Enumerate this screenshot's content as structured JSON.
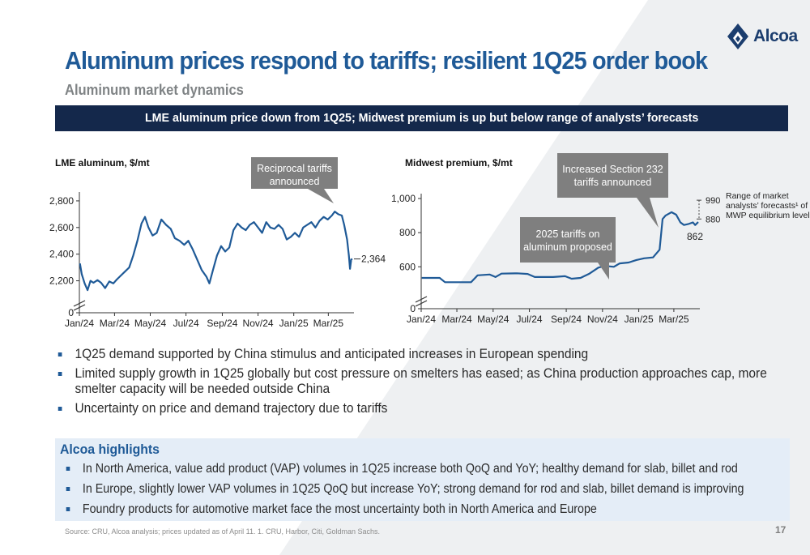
{
  "brand": {
    "name": "Alcoa",
    "color": "#1b3d6e"
  },
  "title": "Aluminum prices respond to tariffs; resilient 1Q25 order book",
  "subtitle": "Aluminum market dynamics",
  "banner": "LME aluminum price down from 1Q25; Midwest premium is up but below range of analysts’ forecasts",
  "colors": {
    "title": "#1f5a97",
    "banner": "#14284b",
    "series": "#1f5a97",
    "callout": "#7f7f7f",
    "highlight_bg": "#e4edf7"
  },
  "chart_data": [
    {
      "type": "line",
      "title": "LME aluminum, $/mt",
      "xlabel": "",
      "ylabel": "",
      "x_range": [
        "2024-01-01",
        "2025-04-11"
      ],
      "x_ticks": [
        "Jan/24",
        "Mar/24",
        "May/24",
        "Jul/24",
        "Sep/24",
        "Nov/24",
        "Jan/25",
        "Mar/25"
      ],
      "y_ticks": [
        "0",
        "2,200",
        "2,400",
        "2,600",
        "2,800"
      ],
      "ylim": [
        2100,
        2830
      ],
      "axis_break": true,
      "series": [
        {
          "values": [
            [
              "2024-01-02",
              2330
            ],
            [
              "2024-01-05",
              2250
            ],
            [
              "2024-01-10",
              2180
            ],
            [
              "2024-01-15",
              2130
            ],
            [
              "2024-01-20",
              2200
            ],
            [
              "2024-01-25",
              2185
            ],
            [
              "2024-02-01",
              2205
            ],
            [
              "2024-02-07",
              2185
            ],
            [
              "2024-02-14",
              2145
            ],
            [
              "2024-02-21",
              2195
            ],
            [
              "2024-02-28",
              2180
            ],
            [
              "2024-03-05",
              2210
            ],
            [
              "2024-03-12",
              2240
            ],
            [
              "2024-03-19",
              2270
            ],
            [
              "2024-03-26",
              2300
            ],
            [
              "2024-04-02",
              2390
            ],
            [
              "2024-04-09",
              2500
            ],
            [
              "2024-04-16",
              2630
            ],
            [
              "2024-04-22",
              2680
            ],
            [
              "2024-04-28",
              2600
            ],
            [
              "2024-05-05",
              2540
            ],
            [
              "2024-05-12",
              2560
            ],
            [
              "2024-05-20",
              2660
            ],
            [
              "2024-05-28",
              2620
            ],
            [
              "2024-06-05",
              2590
            ],
            [
              "2024-06-12",
              2520
            ],
            [
              "2024-06-20",
              2500
            ],
            [
              "2024-06-28",
              2470
            ],
            [
              "2024-07-05",
              2500
            ],
            [
              "2024-07-12",
              2440
            ],
            [
              "2024-07-20",
              2360
            ],
            [
              "2024-07-28",
              2280
            ],
            [
              "2024-08-05",
              2230
            ],
            [
              "2024-08-10",
              2180
            ],
            [
              "2024-08-16",
              2280
            ],
            [
              "2024-08-23",
              2390
            ],
            [
              "2024-08-30",
              2460
            ],
            [
              "2024-09-06",
              2420
            ],
            [
              "2024-09-13",
              2450
            ],
            [
              "2024-09-20",
              2580
            ],
            [
              "2024-09-27",
              2630
            ],
            [
              "2024-10-04",
              2600
            ],
            [
              "2024-10-11",
              2580
            ],
            [
              "2024-10-18",
              2620
            ],
            [
              "2024-10-25",
              2640
            ],
            [
              "2024-11-01",
              2600
            ],
            [
              "2024-11-08",
              2560
            ],
            [
              "2024-11-15",
              2640
            ],
            [
              "2024-11-22",
              2600
            ],
            [
              "2024-11-29",
              2590
            ],
            [
              "2024-12-06",
              2620
            ],
            [
              "2024-12-13",
              2590
            ],
            [
              "2024-12-20",
              2510
            ],
            [
              "2024-12-27",
              2530
            ],
            [
              "2025-01-03",
              2560
            ],
            [
              "2025-01-10",
              2530
            ],
            [
              "2025-01-17",
              2600
            ],
            [
              "2025-01-24",
              2620
            ],
            [
              "2025-01-31",
              2640
            ],
            [
              "2025-02-07",
              2600
            ],
            [
              "2025-02-14",
              2650
            ],
            [
              "2025-02-21",
              2680
            ],
            [
              "2025-02-28",
              2660
            ],
            [
              "2025-03-07",
              2690
            ],
            [
              "2025-03-12",
              2720
            ],
            [
              "2025-03-18",
              2700
            ],
            [
              "2025-03-24",
              2690
            ],
            [
              "2025-03-28",
              2620
            ],
            [
              "2025-04-02",
              2510
            ],
            [
              "2025-04-05",
              2390
            ],
            [
              "2025-04-07",
              2290
            ],
            [
              "2025-04-09",
              2360
            ],
            [
              "2025-04-11",
              2364
            ]
          ]
        }
      ],
      "end_label": "2,364",
      "annotation": "Reciprocal tariffs announced"
    },
    {
      "type": "line",
      "title": "Midwest premium, $/mt",
      "xlabel": "",
      "ylabel": "",
      "x_range": [
        "2024-01-01",
        "2025-04-11"
      ],
      "x_ticks": [
        "Jan/24",
        "Mar/24",
        "May/24",
        "Jul/24",
        "Sep/24",
        "Nov/24",
        "Jan/25",
        "Mar/25"
      ],
      "y_ticks": [
        "0",
        "600",
        "800",
        "1,000"
      ],
      "ylim": [
        440,
        1000
      ],
      "axis_break": true,
      "series": [
        {
          "values": [
            [
              "2024-01-02",
              535
            ],
            [
              "2024-02-01",
              535
            ],
            [
              "2024-02-10",
              510
            ],
            [
              "2024-03-10",
              510
            ],
            [
              "2024-03-25",
              510
            ],
            [
              "2024-04-05",
              550
            ],
            [
              "2024-04-25",
              555
            ],
            [
              "2024-05-05",
              540
            ],
            [
              "2024-05-15",
              560
            ],
            [
              "2024-06-10",
              562
            ],
            [
              "2024-06-28",
              558
            ],
            [
              "2024-07-10",
              540
            ],
            [
              "2024-08-10",
              540
            ],
            [
              "2024-08-30",
              545
            ],
            [
              "2024-09-10",
              530
            ],
            [
              "2024-09-25",
              535
            ],
            [
              "2024-10-10",
              560
            ],
            [
              "2024-10-25",
              595
            ],
            [
              "2024-11-05",
              605
            ],
            [
              "2024-11-20",
              600
            ],
            [
              "2024-11-30",
              620
            ],
            [
              "2024-12-15",
              625
            ],
            [
              "2024-12-28",
              640
            ],
            [
              "2025-01-10",
              650
            ],
            [
              "2025-01-25",
              655
            ],
            [
              "2025-02-05",
              700
            ],
            [
              "2025-02-10",
              880
            ],
            [
              "2025-02-15",
              900
            ],
            [
              "2025-02-25",
              920
            ],
            [
              "2025-03-05",
              905
            ],
            [
              "2025-03-12",
              860
            ],
            [
              "2025-03-18",
              845
            ],
            [
              "2025-03-25",
              850
            ],
            [
              "2025-04-02",
              860
            ],
            [
              "2025-04-06",
              845
            ],
            [
              "2025-04-11",
              862
            ]
          ]
        }
      ],
      "end_label": "862",
      "range_high": "990",
      "range_low": "880",
      "range_values": [
        880,
        990
      ],
      "range_label": [
        "Range of market",
        "analysts’ forecasts¹ of",
        "MWP equilibrium level"
      ],
      "annotations": [
        "Increased Section 232 tariffs announced",
        "2025 tariffs on aluminum proposed"
      ]
    }
  ],
  "bullets": [
    "1Q25 demand supported by China stimulus and anticipated increases in European spending",
    "Limited supply growth in 1Q25 globally but cost pressure on smelters has eased; as China production approaches cap, more smelter capacity will be needed outside China",
    "Uncertainty on price and demand trajectory due to tariffs"
  ],
  "highlights": {
    "title": "Alcoa highlights",
    "items": [
      "In North America, value add product (VAP) volumes in 1Q25 increase both QoQ and YoY; healthy demand for slab, billet and rod",
      "In Europe, slightly lower VAP volumes in 1Q25 QoQ but increase YoY; strong demand for rod and slab, billet demand is improving",
      "Foundry products for automotive market face the most uncertainty both in North America and Europe"
    ]
  },
  "footnote": "Source: CRU, Alcoa analysis; prices updated as of April 11. 1. CRU, Harbor, Citi, Goldman Sachs.",
  "page_number": "17"
}
